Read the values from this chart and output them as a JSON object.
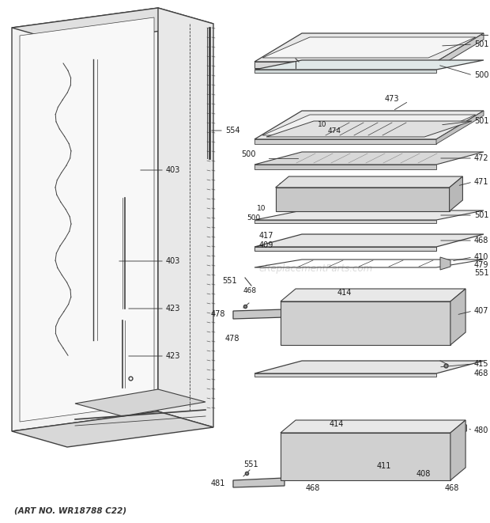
{
  "bg_color": "#ffffff",
  "lc": "#404040",
  "fig_width": 6.2,
  "fig_height": 6.61,
  "dpi": 100,
  "bottom_text": "(ART NO. WR18788 C22)",
  "watermark": "eReplacementParts.com"
}
